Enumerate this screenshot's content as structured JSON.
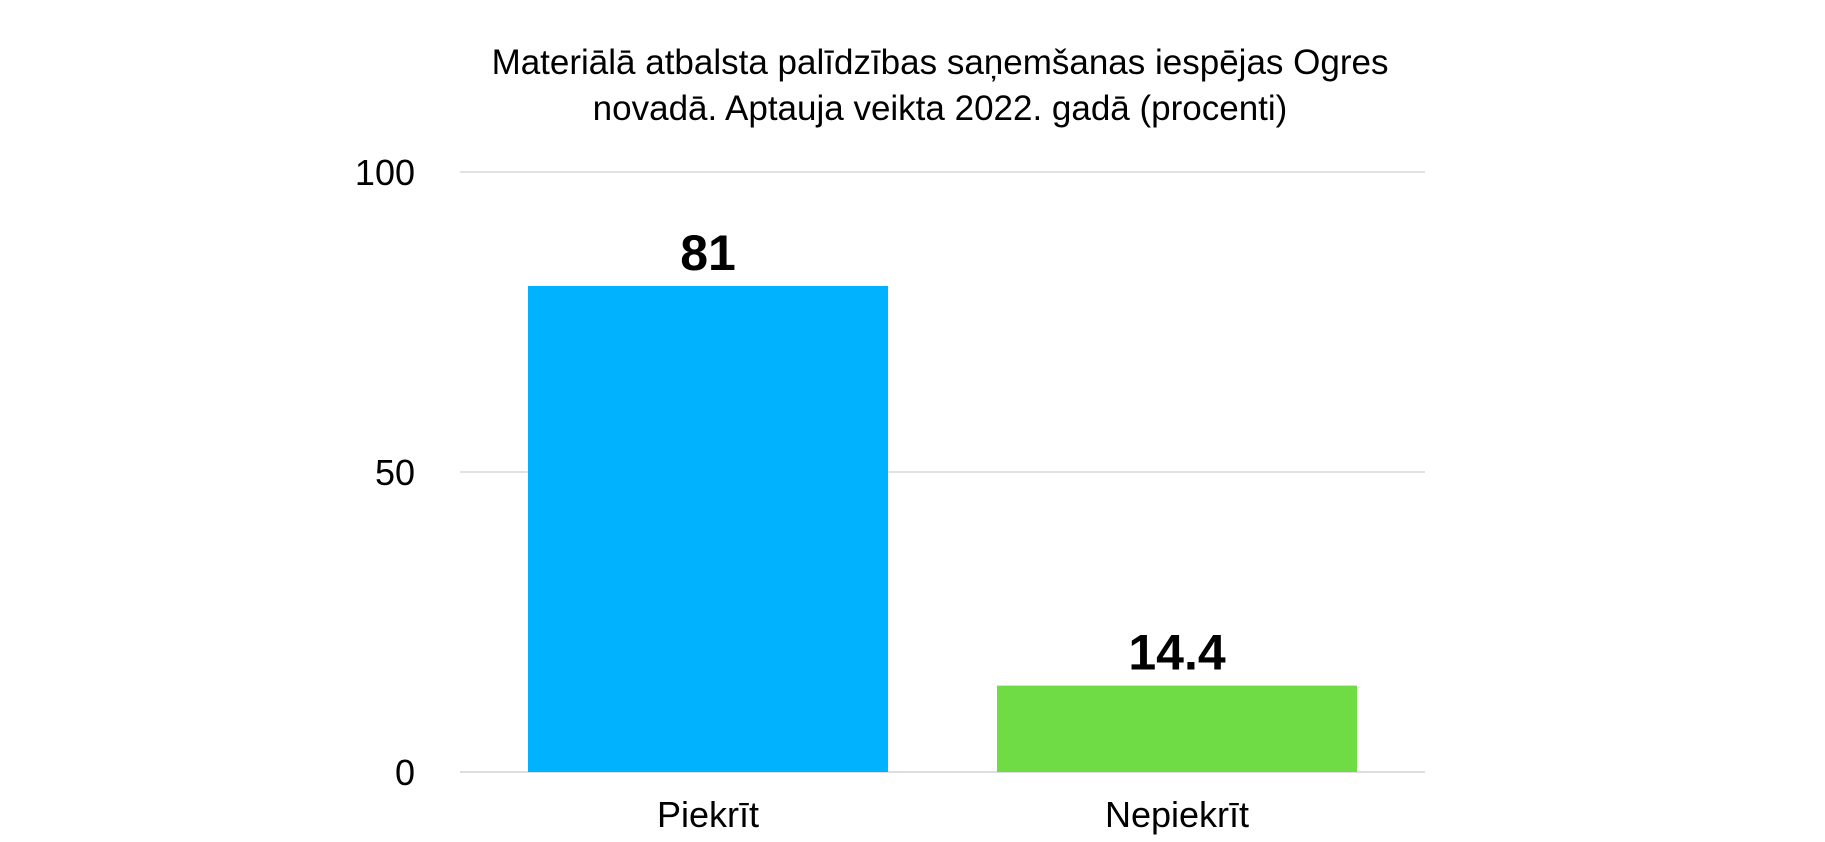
{
  "chart_data": {
    "type": "bar",
    "title_lines": [
      "Materiālā atbalsta palīdzības saņemšanas iespējas Ogres",
      "novadā. Aptauja veikta 2022. gadā (procenti)"
    ],
    "categories": [
      "Piekrīt",
      "Nepiekrīt"
    ],
    "values": [
      81,
      14.4
    ],
    "data_labels": [
      "81",
      "14.4"
    ],
    "colors": [
      "#00B2FF",
      "#6FDC46"
    ],
    "ylim": [
      0,
      100
    ],
    "yticks": [
      0,
      50,
      100
    ],
    "ytick_labels": [
      "0",
      "50",
      "100"
    ],
    "xlabel": "",
    "ylabel": "",
    "grid": true,
    "legend": "none"
  }
}
